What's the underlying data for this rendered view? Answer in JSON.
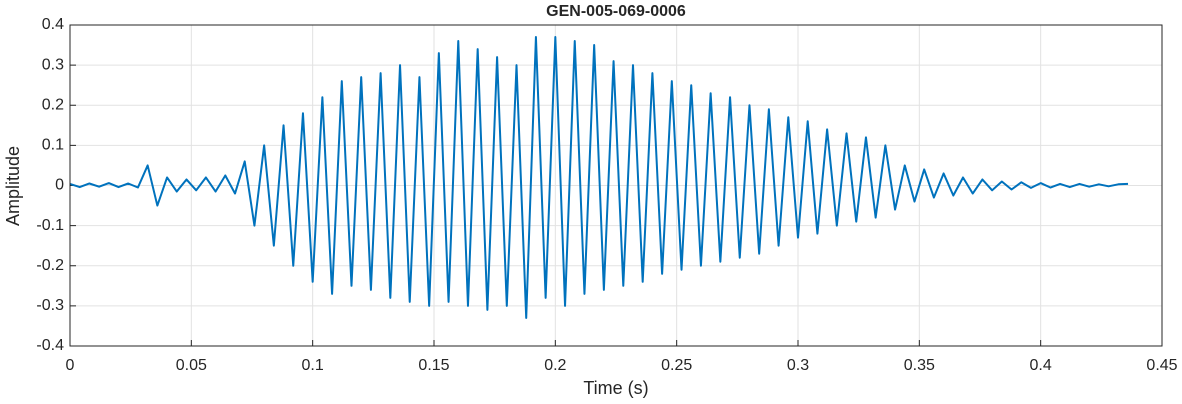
{
  "chart_data": {
    "type": "line",
    "title": "GEN-005-069-0006",
    "x_label": "Time (s)",
    "y_label": "Amplitude",
    "x": [
      0,
      0.004,
      0.008,
      0.012,
      0.016,
      0.02,
      0.024,
      0.028,
      0.032,
      0.036,
      0.04,
      0.044,
      0.048,
      0.052,
      0.056,
      0.06,
      0.064,
      0.068,
      0.072,
      0.076,
      0.08,
      0.084,
      0.088,
      0.092,
      0.096,
      0.1,
      0.104,
      0.108,
      0.112,
      0.116,
      0.12,
      0.124,
      0.128,
      0.132,
      0.136,
      0.14,
      0.144,
      0.148,
      0.152,
      0.156,
      0.16,
      0.164,
      0.168,
      0.172,
      0.176,
      0.18,
      0.184,
      0.188,
      0.192,
      0.196,
      0.2,
      0.204,
      0.208,
      0.212,
      0.216,
      0.22,
      0.224,
      0.228,
      0.232,
      0.236,
      0.24,
      0.244,
      0.248,
      0.252,
      0.256,
      0.26,
      0.264,
      0.268,
      0.272,
      0.276,
      0.28,
      0.284,
      0.288,
      0.292,
      0.296,
      0.3,
      0.304,
      0.308,
      0.312,
      0.316,
      0.32,
      0.324,
      0.328,
      0.332,
      0.336,
      0.34,
      0.344,
      0.348,
      0.352,
      0.356,
      0.36,
      0.364,
      0.368,
      0.372,
      0.376,
      0.38,
      0.384,
      0.388,
      0.392,
      0.396,
      0.4,
      0.404,
      0.408,
      0.412,
      0.416,
      0.42,
      0.424,
      0.428,
      0.432,
      0.436
    ],
    "series": [
      {
        "name": "Amplitude",
        "color": "#0072bd",
        "values": [
          0.004,
          -0.004,
          0.005,
          -0.003,
          0.006,
          -0.004,
          0.005,
          -0.005,
          0.05,
          -0.05,
          0.02,
          -0.015,
          0.015,
          -0.012,
          0.02,
          -0.015,
          0.025,
          -0.02,
          0.06,
          -0.1,
          0.1,
          -0.15,
          0.15,
          -0.2,
          0.18,
          -0.24,
          0.22,
          -0.27,
          0.26,
          -0.25,
          0.27,
          -0.26,
          0.28,
          -0.28,
          0.3,
          -0.29,
          0.27,
          -0.3,
          0.33,
          -0.29,
          0.36,
          -0.3,
          0.34,
          -0.31,
          0.32,
          -0.3,
          0.3,
          -0.33,
          0.37,
          -0.28,
          0.37,
          -0.3,
          0.36,
          -0.27,
          0.35,
          -0.26,
          0.31,
          -0.25,
          0.3,
          -0.24,
          0.28,
          -0.22,
          0.26,
          -0.21,
          0.25,
          -0.2,
          0.23,
          -0.19,
          0.22,
          -0.18,
          0.2,
          -0.17,
          0.19,
          -0.15,
          0.17,
          -0.13,
          0.16,
          -0.12,
          0.14,
          -0.1,
          0.13,
          -0.09,
          0.12,
          -0.08,
          0.1,
          -0.06,
          0.05,
          -0.04,
          0.04,
          -0.03,
          0.03,
          -0.025,
          0.02,
          -0.02,
          0.015,
          -0.012,
          0.01,
          -0.01,
          0.008,
          -0.006,
          0.006,
          -0.005,
          0.004,
          -0.004,
          0.004,
          -0.003,
          0.003,
          -0.002,
          0.003,
          0.004
        ]
      }
    ],
    "xlim": [
      0,
      0.45
    ],
    "xticks": [
      0,
      0.05,
      0.1,
      0.15,
      0.2,
      0.25,
      0.3,
      0.35,
      0.4,
      0.45
    ],
    "ylim": [
      -0.4,
      0.4
    ],
    "yticks": [
      -0.4,
      -0.3,
      -0.2,
      -0.1,
      0,
      0.1,
      0.2,
      0.3,
      0.4
    ],
    "grid": true
  }
}
